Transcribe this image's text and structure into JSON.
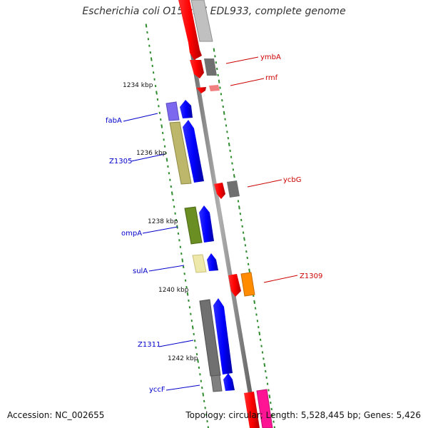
{
  "title": "Escherichia coli O157:H7 EDL933, complete genome",
  "footer": {
    "accession": "Accession: NC_002655",
    "summary": "Topology: circular; Length: 5,528,445 bp; Genes: 5,426"
  },
  "colors": {
    "label_forward": "#0000cc",
    "label_reverse": "#cc0000",
    "tick": "#2e8b2e",
    "axis": "#8a8a8a"
  },
  "ticks": [
    {
      "label": "1234 kbp"
    },
    {
      "label": "1236 kbp"
    },
    {
      "label": "1238 kbp"
    },
    {
      "label": "1240 kbp"
    },
    {
      "label": "1242 kbp"
    }
  ],
  "genes": [
    {
      "name": "ymbA",
      "strand": "reverse",
      "color": "#808080"
    },
    {
      "name": "rmf",
      "strand": "reverse",
      "color": "#f08080"
    },
    {
      "name": "fabA",
      "strand": "forward",
      "color": "#7b68ee"
    },
    {
      "name": "Z1305",
      "strand": "forward",
      "color": "#bdb76b"
    },
    {
      "name": "ycbG",
      "strand": "reverse",
      "color": "#808080"
    },
    {
      "name": "ompA",
      "strand": "forward",
      "color": "#6b8e23"
    },
    {
      "name": "sulA",
      "strand": "forward",
      "color": "#eee8aa"
    },
    {
      "name": "Z1309",
      "strand": "reverse",
      "color": "#ff8c00"
    },
    {
      "name": "Z1311",
      "strand": "forward",
      "color": "#808080"
    },
    {
      "name": "yccF",
      "strand": "forward",
      "color": "#808080"
    }
  ]
}
